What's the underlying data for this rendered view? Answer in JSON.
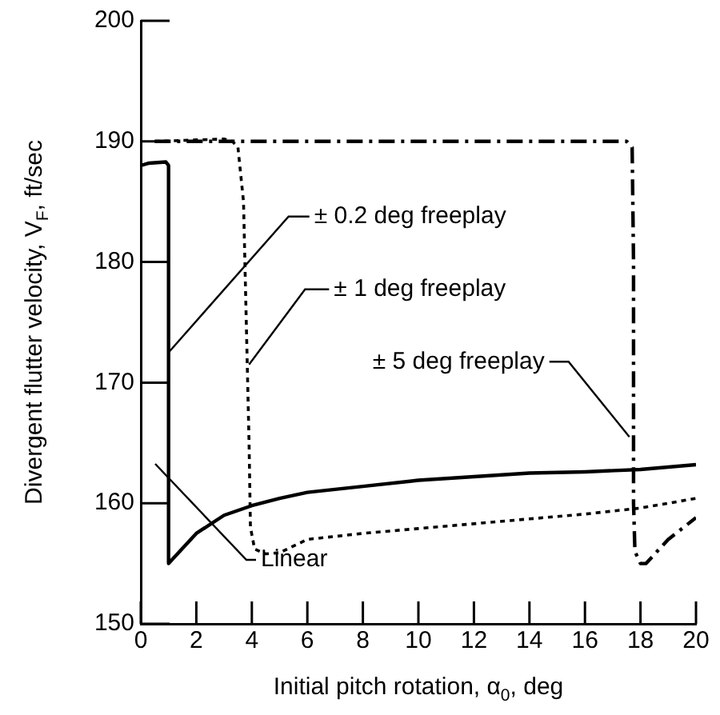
{
  "chart_data": {
    "type": "line",
    "xlabel": "Initial pitch rotation, α$_{0}$, deg",
    "ylabel": "Divergent flutter velocity, V$_{F}$, ft/sec",
    "xlim": [
      0,
      20
    ],
    "xticks": [
      0,
      2,
      4,
      6,
      8,
      10,
      12,
      14,
      16,
      18,
      20
    ],
    "ylim": [
      150,
      200
    ],
    "yticks": [
      150,
      160,
      170,
      180,
      190,
      200
    ],
    "grid": false,
    "legend": false,
    "marker": "none",
    "series": [
      {
        "color": "#000000",
        "line_style": "solid",
        "x": [
          0,
          0.3,
          0.9,
          1.0,
          1.0,
          2,
          3,
          4,
          5,
          6,
          8,
          10,
          12,
          14,
          16,
          18,
          20
        ],
        "values": [
          188,
          188.2,
          188.3,
          188,
          155,
          157.5,
          159,
          159.8,
          160.4,
          160.9,
          161.4,
          161.9,
          162.2,
          162.5,
          162.6,
          162.8,
          163.2
        ]
      },
      {
        "color": "#000000",
        "line_style": "dotted",
        "x": [
          0.5,
          3,
          3.3,
          3.5,
          3.7,
          3.8,
          3.9,
          3.95,
          4.1,
          4.5,
          5,
          6,
          8,
          10,
          12,
          14,
          16,
          18,
          20
        ],
        "values": [
          190,
          190.2,
          190,
          189.5,
          185,
          175,
          165,
          158,
          156.2,
          155.8,
          155.9,
          157,
          157.5,
          157.9,
          158.3,
          158.7,
          159.1,
          159.6,
          160.4
        ]
      },
      {
        "color": "#000000",
        "line_style": "dashdot",
        "x": [
          0.5,
          17.5,
          17.7,
          17.75,
          17.75,
          17.8,
          18,
          18.2,
          19,
          20
        ],
        "values": [
          190,
          190,
          189.5,
          180,
          160,
          156,
          155,
          155,
          157,
          158.8
        ]
      }
    ],
    "annotations": [
      {
        "text": "± 0.2 deg freeplay",
        "x": 1,
        "y": 172.5
      },
      {
        "text": "± 1 deg freeplay",
        "x": 3.9,
        "y": 171.5
      },
      {
        "text": "± 5 deg freeplay",
        "x": 17.6,
        "y": 165.5
      },
      "Linear"
    ]
  }
}
